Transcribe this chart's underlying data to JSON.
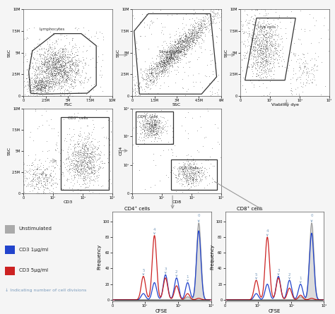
{
  "background_color": "#f5f5f5",
  "scatter_dot_color": "#444444",
  "arrow_color": "#999999",
  "annotation_color": "#7799bb",
  "gate_color": "#333333",
  "row1_plots": [
    {
      "xlabel": "FSC",
      "ylabel": "SSC",
      "gate_label": "Lymphocytes"
    },
    {
      "xlabel": "SSC",
      "ylabel": "SSC",
      "gate_label": "Single cells"
    },
    {
      "xlabel": "Viability dye",
      "ylabel": "SSC",
      "gate_label": "Live cells"
    }
  ],
  "row2_plots": [
    {
      "xlabel": "CD3",
      "ylabel": "SSC",
      "gate_label": "CD3⁺ cells"
    },
    {
      "xlabel": "CD8",
      "ylabel": "CD4",
      "gate_label1": "CD4⁺ cells",
      "gate_label2": "CD8⁺ cells"
    }
  ],
  "row3_plots": [
    {
      "xlabel": "CFSE",
      "ylabel": "Frequency",
      "title": "CD4⁺ cells"
    },
    {
      "xlabel": "CFSE",
      "ylabel": "Frequency",
      "title": "CD8⁺ cells"
    }
  ],
  "legend_items": [
    {
      "label": "Unstimulated",
      "color": "#aaaaaa"
    },
    {
      "label": "CD3 1μg/ml",
      "color": "#2244cc"
    },
    {
      "label": "CD3 5μg/ml",
      "color": "#cc2222"
    }
  ],
  "legend_note": "↓ Indicating number of cell divisions"
}
